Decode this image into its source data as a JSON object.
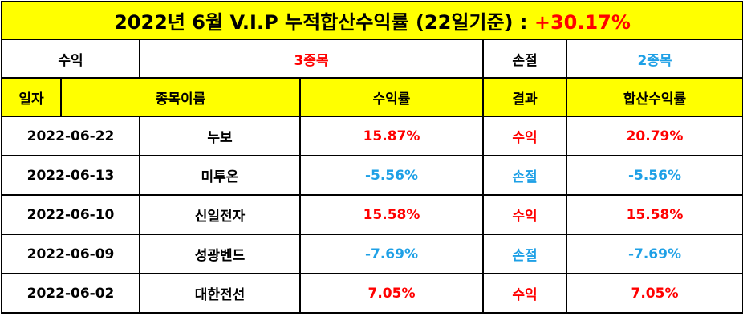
{
  "title": {
    "text": "2022년 6월 V.I.P 누적합산수익률 (22일기준) : ",
    "total": "+30.17%"
  },
  "summary": {
    "profit_label": "수익",
    "profit_value": "3종목",
    "loss_label": "손절",
    "loss_value": "2종목"
  },
  "headers": [
    "일자",
    "종목이름",
    "수익률",
    "결과",
    "합산수익률"
  ],
  "rows": [
    {
      "date": "2022-06-22",
      "name": "누보",
      "rate": "15.87%",
      "result": "수익",
      "total": "20.79%",
      "status": "profit"
    },
    {
      "date": "2022-06-13",
      "name": "미투온",
      "rate": "-5.56%",
      "result": "손절",
      "total": "-5.56%",
      "status": "loss"
    },
    {
      "date": "2022-06-10",
      "name": "신일전자",
      "rate": "15.58%",
      "result": "수익",
      "total": "15.58%",
      "status": "profit"
    },
    {
      "date": "2022-06-09",
      "name": "성광벤드",
      "rate": "-7.69%",
      "result": "손절",
      "total": "-7.69%",
      "status": "loss"
    },
    {
      "date": "2022-06-02",
      "name": "대한전선",
      "rate": "7.05%",
      "result": "수익",
      "total": "7.05%",
      "status": "profit"
    }
  ],
  "colors": {
    "profit": "#ff0000",
    "loss": "#1ea0e6",
    "header_bg": "#ffff00"
  }
}
